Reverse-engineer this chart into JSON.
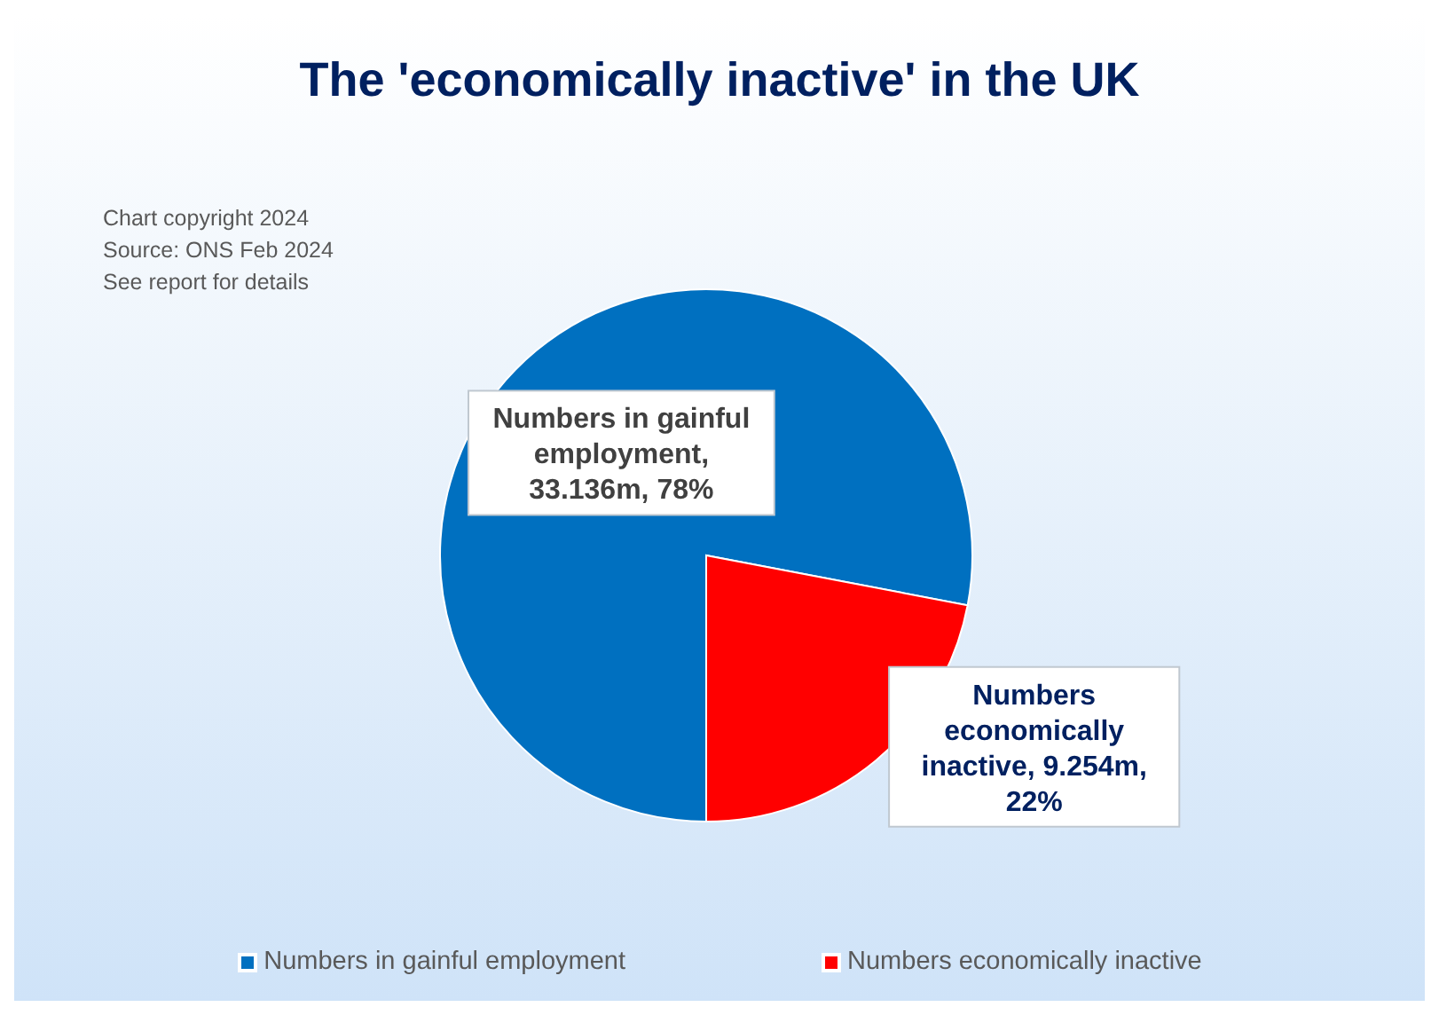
{
  "chart_data": {
    "type": "pie",
    "title": "The 'economically inactive' in the UK",
    "categories": [
      "Numbers in gainful employment",
      "Numbers economically inactive"
    ],
    "values": [
      78,
      22
    ],
    "colors": [
      "#0070c0",
      "#ff0000"
    ],
    "value_labels": [
      "Numbers in gainful employment, 33.136m, 78%",
      "Numbers economically inactive, 9.254m, 22%"
    ],
    "annotations": [
      "Chart copyright 2024",
      "Source: ONS Feb 2024",
      "See report for details"
    ],
    "legend": "bottom"
  }
}
